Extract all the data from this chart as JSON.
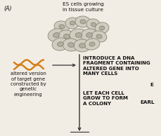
{
  "background_color": "#f2ede4",
  "title_label": "(A)",
  "es_cells_label": "ES cells growing\nin tissue culture",
  "arrow_text1": "INTRODUCE A DNA\nFRAGMENT CONTAINING\nALTERED GENE INTO\nMANY CELLS",
  "arrow_text2": "LET EACH CELL\nGROW TO FORM\nA COLONY",
  "side_text": "altered version\nof target gene\nconstructed by\ngenetic\nengineering",
  "right_text1": "E",
  "right_text2": "EARL",
  "cell_body_color": "#d0cdc0",
  "cell_edge_color": "#888878",
  "cell_nucleus_color": "#b0ae9e",
  "cell_nucleus_edge": "#707060",
  "dna_color": "#d4801a",
  "arrow_color": "#333333",
  "text_color": "#111111",
  "font_size": 5.2,
  "small_font_size": 4.9,
  "cell_positions": [
    [
      88,
      38,
      11,
      8,
      10
    ],
    [
      103,
      33,
      10,
      8,
      -5
    ],
    [
      118,
      31,
      11,
      8,
      5
    ],
    [
      133,
      35,
      10,
      8,
      15
    ],
    [
      145,
      40,
      10,
      8,
      -10
    ],
    [
      80,
      50,
      12,
      9,
      -15
    ],
    [
      95,
      52,
      12,
      9,
      10
    ],
    [
      112,
      50,
      13,
      9,
      0
    ],
    [
      127,
      50,
      12,
      9,
      -8
    ],
    [
      141,
      52,
      11,
      8,
      12
    ],
    [
      86,
      63,
      12,
      9,
      -10
    ],
    [
      101,
      64,
      12,
      9,
      5
    ],
    [
      117,
      65,
      12,
      9,
      0
    ],
    [
      131,
      63,
      11,
      8,
      -12
    ]
  ]
}
